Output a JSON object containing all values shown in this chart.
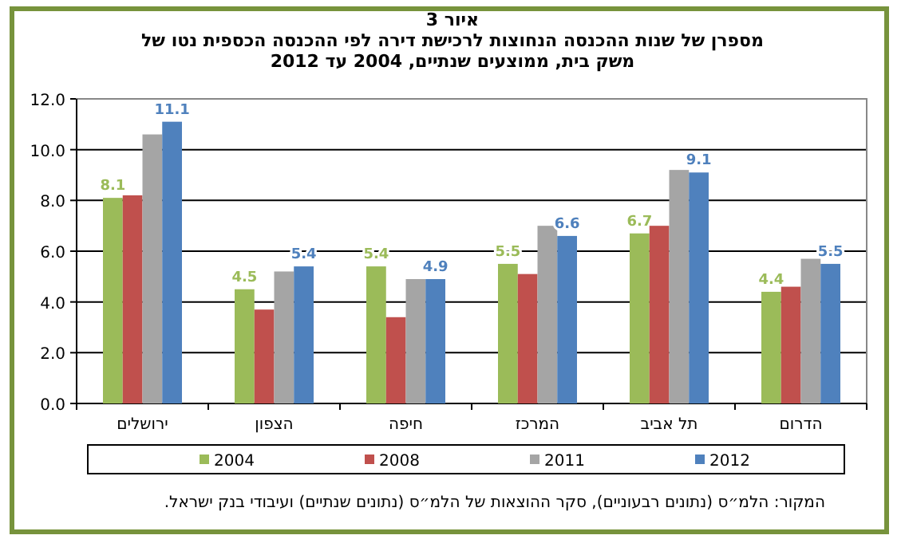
{
  "chart_data": {
    "type": "bar",
    "title": "איור 3",
    "subtitle": "מספרן של שנות ההכנסה הנחוצות לרכישת דירה לפי ההכנסה הכספית נטו של משק בית, ממוצעים שנתיים, 2004 עד 2012",
    "categories": [
      "ירושלים",
      "הצפון",
      "חיפה",
      "המרכז",
      "תל אביב",
      "הדרום"
    ],
    "series": [
      {
        "name": "2004",
        "color": "#9bbb59",
        "values": [
          8.1,
          4.5,
          5.4,
          5.5,
          6.7,
          4.4
        ],
        "value_labels": [
          "8.1",
          "4.5",
          "5.4",
          "5.5",
          "6.7",
          "4.4"
        ]
      },
      {
        "name": "2008",
        "color": "#c0504d",
        "values": [
          8.2,
          3.7,
          3.4,
          5.1,
          7.0,
          4.6
        ]
      },
      {
        "name": "2011",
        "color": "#a5a5a5",
        "values": [
          10.6,
          5.2,
          4.9,
          7.0,
          9.2,
          5.7
        ]
      },
      {
        "name": "2012",
        "color": "#4f81bd",
        "values": [
          11.1,
          5.4,
          4.9,
          6.6,
          9.1,
          5.5
        ],
        "value_labels": [
          "11.1",
          "5.4",
          "4.9",
          "6.6",
          "9.1",
          "5.5"
        ]
      }
    ],
    "ylim": [
      0,
      12
    ],
    "yticks": [
      {
        "value": 0,
        "label": "0.0"
      },
      {
        "value": 2,
        "label": "2.0"
      },
      {
        "value": 4,
        "label": "4.0"
      },
      {
        "value": 6,
        "label": "6.0"
      },
      {
        "value": 8,
        "label": "8.0"
      },
      {
        "value": 10,
        "label": "10.0"
      },
      {
        "value": 12,
        "label": "12.0"
      }
    ],
    "grid": "y",
    "legend": "bottom",
    "annotations": [
      "המקור: הלמ״ס (נתונים רבעוניים), סקר ההוצאות של הלמ״ס (נתונים שנתיים) ועיבודי בנק ישראל."
    ]
  }
}
